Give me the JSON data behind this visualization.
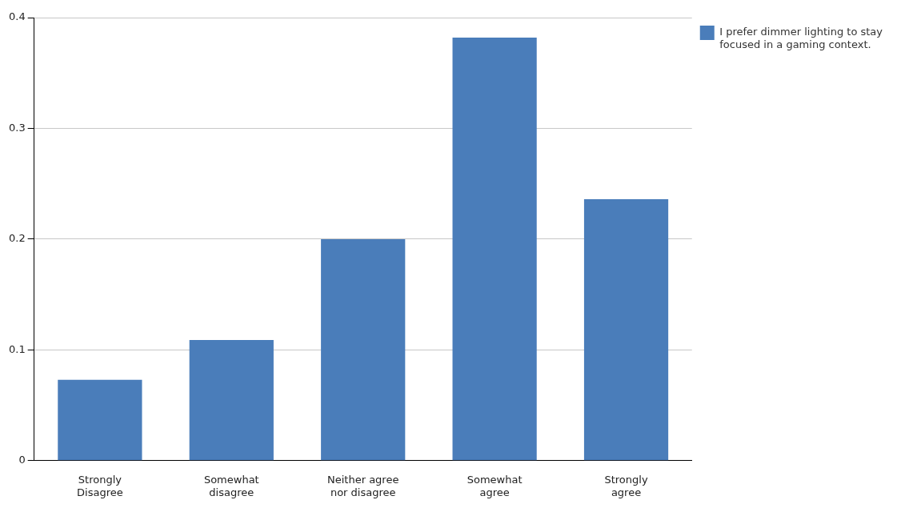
{
  "chart_data": {
    "type": "bar",
    "categories": [
      "Strongly Disagree",
      "Somewhat disagree",
      "Neither agree nor disagree",
      "Somewhat agree",
      "Strongly agree"
    ],
    "series": [
      {
        "name": "I prefer dimmer lighting to stay focused in a gaming context.",
        "color": "#4a7dba",
        "values": [
          0.073,
          0.109,
          0.2,
          0.382,
          0.236
        ]
      }
    ],
    "ylim": [
      0,
      0.4
    ],
    "yticks": [
      0,
      0.1,
      0.2,
      0.3,
      0.4
    ],
    "grid": "y",
    "legend": "top right"
  }
}
